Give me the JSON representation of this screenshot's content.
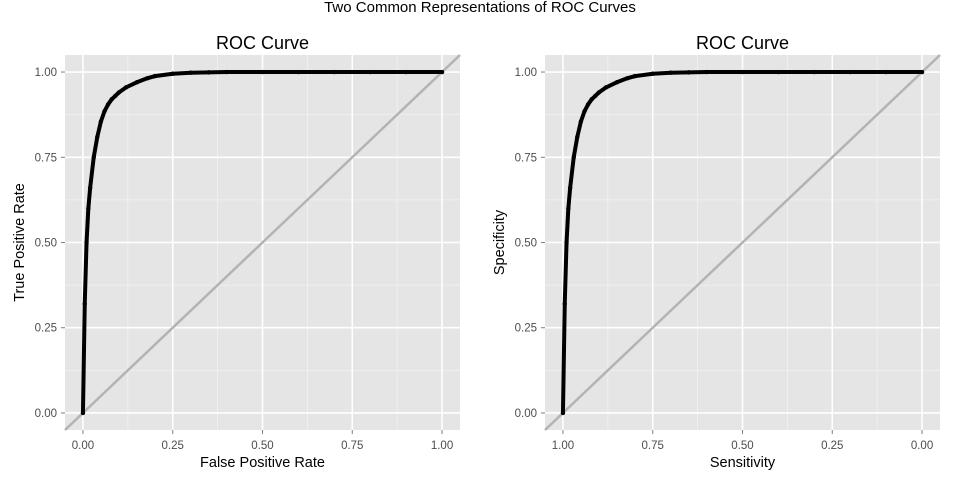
{
  "title": "Two Common Representations of ROC Curves",
  "colors": {
    "panel_bg": "#e5e5e5",
    "grid": "#ffffff",
    "curve": "#000000",
    "diagonal": "#b3b3b3",
    "tick_text": "#4d4d4d"
  },
  "chart_data": [
    {
      "type": "line",
      "title": "ROC Curve",
      "xlabel": "False Positive Rate",
      "ylabel": "True Positive Rate",
      "xlim": [
        -0.05,
        1.05
      ],
      "ylim": [
        -0.05,
        1.05
      ],
      "x_reversed": false,
      "x_ticks": [
        0,
        0.25,
        0.5,
        0.75,
        1
      ],
      "x_tick_labels": [
        "0.00",
        "0.25",
        "0.50",
        "0.75",
        "1.00"
      ],
      "y_ticks": [
        0,
        0.25,
        0.5,
        0.75,
        1
      ],
      "y_tick_labels": [
        "0.00",
        "0.25",
        "0.50",
        "0.75",
        "1.00"
      ],
      "grid": true,
      "reference_line": {
        "x": [
          -0.05,
          1.05
        ],
        "y": [
          -0.05,
          1.05
        ]
      },
      "series": [
        {
          "x": [
            0,
            0.005,
            0.01,
            0.015,
            0.02,
            0.03,
            0.04,
            0.05,
            0.06,
            0.07,
            0.08,
            0.09,
            0.1,
            0.12,
            0.15,
            0.18,
            0.2,
            0.25,
            0.3,
            0.35,
            0.4,
            0.5,
            0.6,
            0.7,
            0.8,
            0.9,
            1
          ],
          "y": [
            0,
            0.32,
            0.5,
            0.6,
            0.66,
            0.75,
            0.81,
            0.855,
            0.885,
            0.905,
            0.92,
            0.93,
            0.94,
            0.955,
            0.97,
            0.982,
            0.988,
            0.995,
            0.998,
            0.999,
            1,
            1,
            1,
            1,
            1,
            1,
            1
          ]
        }
      ]
    },
    {
      "type": "line",
      "title": "ROC Curve",
      "xlabel": "Sensitivity",
      "ylabel": "Specificity",
      "xlim": [
        1.05,
        -0.05
      ],
      "ylim": [
        -0.05,
        1.05
      ],
      "x_reversed": true,
      "x_ticks": [
        1,
        0.75,
        0.5,
        0.25,
        0
      ],
      "x_tick_labels": [
        "1.00",
        "0.75",
        "0.50",
        "0.25",
        "0.00"
      ],
      "y_ticks": [
        0,
        0.25,
        0.5,
        0.75,
        1
      ],
      "y_tick_labels": [
        "0.00",
        "0.25",
        "0.50",
        "0.75",
        "1.00"
      ],
      "grid": true,
      "reference_line": {
        "x": [
          1.05,
          -0.05
        ],
        "y": [
          -0.05,
          1.05
        ]
      },
      "series": [
        {
          "x": [
            1,
            0.995,
            0.99,
            0.985,
            0.98,
            0.97,
            0.96,
            0.95,
            0.94,
            0.93,
            0.92,
            0.91,
            0.9,
            0.88,
            0.85,
            0.82,
            0.8,
            0.75,
            0.7,
            0.65,
            0.6,
            0.5,
            0.4,
            0.3,
            0.2,
            0.1,
            0
          ],
          "y": [
            0,
            0.32,
            0.5,
            0.6,
            0.66,
            0.75,
            0.81,
            0.855,
            0.885,
            0.905,
            0.92,
            0.93,
            0.94,
            0.955,
            0.97,
            0.982,
            0.988,
            0.995,
            0.998,
            0.999,
            1,
            1,
            1,
            1,
            1,
            1,
            1
          ]
        }
      ]
    }
  ]
}
